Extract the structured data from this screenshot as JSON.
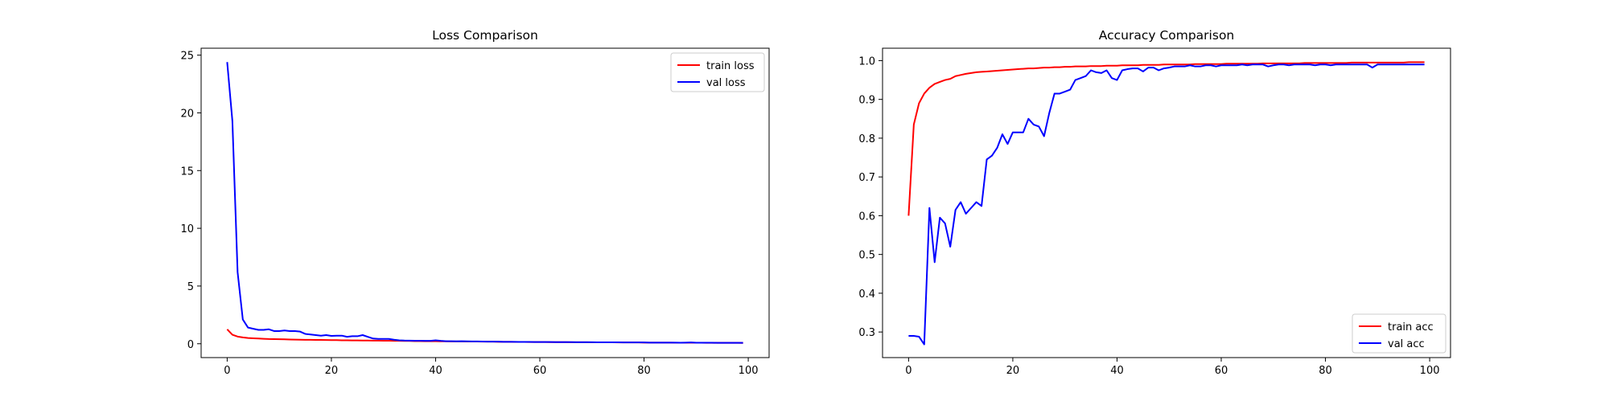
{
  "chart_data": [
    {
      "type": "line",
      "title": "Loss Comparison",
      "xlabel": "",
      "ylabel": "",
      "xlim": [
        -5,
        104
      ],
      "ylim": [
        -1.2,
        25.6
      ],
      "xticks": [
        0,
        20,
        40,
        60,
        80,
        100
      ],
      "yticks": [
        0,
        5,
        10,
        15,
        20,
        25
      ],
      "grid": false,
      "legend_position": "upper right",
      "series": [
        {
          "name": "train loss",
          "color": "#ff0000",
          "x": [
            0,
            1,
            2,
            3,
            4,
            5,
            6,
            7,
            8,
            9,
            10,
            11,
            12,
            13,
            14,
            15,
            16,
            17,
            18,
            19,
            20,
            21,
            22,
            23,
            24,
            25,
            26,
            27,
            28,
            29,
            30,
            31,
            32,
            33,
            34,
            35,
            36,
            37,
            38,
            39,
            40,
            41,
            42,
            43,
            44,
            45,
            46,
            47,
            48,
            49,
            50,
            51,
            52,
            53,
            54,
            55,
            56,
            57,
            58,
            59,
            60,
            61,
            62,
            63,
            64,
            65,
            66,
            67,
            68,
            69,
            70,
            71,
            72,
            73,
            74,
            75,
            76,
            77,
            78,
            79,
            80,
            81,
            82,
            83,
            84,
            85,
            86,
            87,
            88,
            89,
            90,
            91,
            92,
            93,
            94,
            95,
            96,
            97,
            98,
            99
          ],
          "values": [
            1.25,
            0.78,
            0.62,
            0.55,
            0.5,
            0.47,
            0.45,
            0.43,
            0.41,
            0.4,
            0.39,
            0.38,
            0.37,
            0.36,
            0.35,
            0.34,
            0.34,
            0.33,
            0.33,
            0.32,
            0.31,
            0.31,
            0.3,
            0.3,
            0.29,
            0.29,
            0.28,
            0.28,
            0.27,
            0.27,
            0.26,
            0.26,
            0.25,
            0.25,
            0.24,
            0.24,
            0.23,
            0.23,
            0.22,
            0.22,
            0.22,
            0.21,
            0.21,
            0.2,
            0.2,
            0.2,
            0.19,
            0.19,
            0.19,
            0.18,
            0.18,
            0.18,
            0.17,
            0.17,
            0.17,
            0.16,
            0.16,
            0.16,
            0.15,
            0.15,
            0.15,
            0.15,
            0.14,
            0.14,
            0.14,
            0.14,
            0.13,
            0.13,
            0.13,
            0.13,
            0.12,
            0.12,
            0.12,
            0.12,
            0.12,
            0.11,
            0.11,
            0.11,
            0.11,
            0.11,
            0.1,
            0.1,
            0.1,
            0.1,
            0.1,
            0.1,
            0.09,
            0.09,
            0.09,
            0.09,
            0.09,
            0.09,
            0.08,
            0.08,
            0.08,
            0.08,
            0.08,
            0.08,
            0.08,
            0.07
          ]
        },
        {
          "name": "val loss",
          "color": "#0000ff",
          "x": [
            0,
            1,
            2,
            3,
            4,
            5,
            6,
            7,
            8,
            9,
            10,
            11,
            12,
            13,
            14,
            15,
            16,
            17,
            18,
            19,
            20,
            21,
            22,
            23,
            24,
            25,
            26,
            27,
            28,
            29,
            30,
            31,
            32,
            33,
            34,
            35,
            36,
            37,
            38,
            39,
            40,
            41,
            42,
            43,
            44,
            45,
            46,
            47,
            48,
            49,
            50,
            51,
            52,
            53,
            54,
            55,
            56,
            57,
            58,
            59,
            60,
            61,
            62,
            63,
            64,
            65,
            66,
            67,
            68,
            69,
            70,
            71,
            72,
            73,
            74,
            75,
            76,
            77,
            78,
            79,
            80,
            81,
            82,
            83,
            84,
            85,
            86,
            87,
            88,
            89,
            90,
            91,
            92,
            93,
            94,
            95,
            96,
            97,
            98,
            99
          ],
          "values": [
            24.4,
            19.3,
            6.2,
            2.1,
            1.4,
            1.3,
            1.2,
            1.2,
            1.25,
            1.1,
            1.1,
            1.15,
            1.1,
            1.1,
            1.05,
            0.85,
            0.8,
            0.75,
            0.7,
            0.75,
            0.68,
            0.7,
            0.7,
            0.6,
            0.65,
            0.65,
            0.75,
            0.6,
            0.45,
            0.42,
            0.42,
            0.42,
            0.35,
            0.3,
            0.28,
            0.27,
            0.26,
            0.26,
            0.25,
            0.25,
            0.3,
            0.25,
            0.22,
            0.22,
            0.21,
            0.22,
            0.21,
            0.2,
            0.2,
            0.19,
            0.18,
            0.18,
            0.18,
            0.17,
            0.17,
            0.17,
            0.16,
            0.16,
            0.16,
            0.15,
            0.15,
            0.15,
            0.15,
            0.14,
            0.14,
            0.14,
            0.14,
            0.13,
            0.13,
            0.13,
            0.13,
            0.12,
            0.12,
            0.12,
            0.12,
            0.12,
            0.11,
            0.11,
            0.11,
            0.11,
            0.11,
            0.1,
            0.1,
            0.1,
            0.1,
            0.1,
            0.1,
            0.09,
            0.1,
            0.11,
            0.09,
            0.09,
            0.09,
            0.09,
            0.08,
            0.08,
            0.08,
            0.08,
            0.08,
            0.08
          ]
        }
      ]
    },
    {
      "type": "line",
      "title": "Accuracy Comparison",
      "xlabel": "",
      "ylabel": "",
      "xlim": [
        -5,
        104
      ],
      "ylim": [
        0.234,
        1.032
      ],
      "xticks": [
        0,
        20,
        40,
        60,
        80,
        100
      ],
      "yticks": [
        0.3,
        0.4,
        0.5,
        0.6,
        0.7,
        0.8,
        0.9,
        1.0
      ],
      "ytick_labels": [
        "0.3",
        "0.4",
        "0.5",
        "0.6",
        "0.7",
        "0.8",
        "0.9",
        "1.0"
      ],
      "grid": false,
      "legend_position": "lower right",
      "series": [
        {
          "name": "train acc",
          "color": "#ff0000",
          "x": [
            0,
            1,
            2,
            3,
            4,
            5,
            6,
            7,
            8,
            9,
            10,
            11,
            12,
            13,
            14,
            15,
            16,
            17,
            18,
            19,
            20,
            21,
            22,
            23,
            24,
            25,
            26,
            27,
            28,
            29,
            30,
            31,
            32,
            33,
            34,
            35,
            36,
            37,
            38,
            39,
            40,
            41,
            42,
            43,
            44,
            45,
            46,
            47,
            48,
            49,
            50,
            51,
            52,
            53,
            54,
            55,
            56,
            57,
            58,
            59,
            60,
            61,
            62,
            63,
            64,
            65,
            66,
            67,
            68,
            69,
            70,
            71,
            72,
            73,
            74,
            75,
            76,
            77,
            78,
            79,
            80,
            81,
            82,
            83,
            84,
            85,
            86,
            87,
            88,
            89,
            90,
            91,
            92,
            93,
            94,
            95,
            96,
            97,
            98,
            99
          ],
          "values": [
            0.6,
            0.835,
            0.89,
            0.915,
            0.93,
            0.94,
            0.945,
            0.95,
            0.953,
            0.96,
            0.963,
            0.966,
            0.968,
            0.97,
            0.971,
            0.972,
            0.973,
            0.974,
            0.975,
            0.976,
            0.977,
            0.978,
            0.979,
            0.98,
            0.98,
            0.981,
            0.982,
            0.982,
            0.983,
            0.983,
            0.984,
            0.984,
            0.985,
            0.985,
            0.985,
            0.986,
            0.986,
            0.986,
            0.987,
            0.987,
            0.987,
            0.988,
            0.988,
            0.988,
            0.988,
            0.989,
            0.989,
            0.989,
            0.989,
            0.99,
            0.99,
            0.99,
            0.99,
            0.99,
            0.99,
            0.991,
            0.991,
            0.991,
            0.991,
            0.991,
            0.991,
            0.992,
            0.992,
            0.992,
            0.992,
            0.992,
            0.992,
            0.992,
            0.993,
            0.993,
            0.993,
            0.993,
            0.993,
            0.993,
            0.993,
            0.993,
            0.994,
            0.994,
            0.994,
            0.994,
            0.994,
            0.994,
            0.994,
            0.994,
            0.994,
            0.995,
            0.995,
            0.995,
            0.995,
            0.995,
            0.995,
            0.995,
            0.995,
            0.995,
            0.995,
            0.995,
            0.996,
            0.996,
            0.996,
            0.996
          ]
        },
        {
          "name": "val acc",
          "color": "#0000ff",
          "x": [
            0,
            1,
            2,
            3,
            4,
            5,
            6,
            7,
            8,
            9,
            10,
            11,
            12,
            13,
            14,
            15,
            16,
            17,
            18,
            19,
            20,
            21,
            22,
            23,
            24,
            25,
            26,
            27,
            28,
            29,
            30,
            31,
            32,
            33,
            34,
            35,
            36,
            37,
            38,
            39,
            40,
            41,
            42,
            43,
            44,
            45,
            46,
            47,
            48,
            49,
            50,
            51,
            52,
            53,
            54,
            55,
            56,
            57,
            58,
            59,
            60,
            61,
            62,
            63,
            64,
            65,
            66,
            67,
            68,
            69,
            70,
            71,
            72,
            73,
            74,
            75,
            76,
            77,
            78,
            79,
            80,
            81,
            82,
            83,
            84,
            85,
            86,
            87,
            88,
            89,
            90,
            91,
            92,
            93,
            94,
            95,
            96,
            97,
            98,
            99
          ],
          "values": [
            0.29,
            0.29,
            0.288,
            0.268,
            0.62,
            0.48,
            0.595,
            0.58,
            0.52,
            0.615,
            0.635,
            0.605,
            0.62,
            0.635,
            0.625,
            0.745,
            0.755,
            0.775,
            0.81,
            0.785,
            0.815,
            0.815,
            0.815,
            0.85,
            0.835,
            0.83,
            0.805,
            0.865,
            0.915,
            0.915,
            0.92,
            0.925,
            0.95,
            0.955,
            0.96,
            0.975,
            0.97,
            0.968,
            0.975,
            0.955,
            0.95,
            0.975,
            0.978,
            0.98,
            0.98,
            0.972,
            0.982,
            0.982,
            0.975,
            0.98,
            0.982,
            0.985,
            0.985,
            0.985,
            0.988,
            0.985,
            0.985,
            0.988,
            0.988,
            0.985,
            0.988,
            0.988,
            0.988,
            0.988,
            0.99,
            0.988,
            0.99,
            0.99,
            0.99,
            0.985,
            0.988,
            0.99,
            0.99,
            0.988,
            0.99,
            0.99,
            0.99,
            0.99,
            0.988,
            0.99,
            0.99,
            0.988,
            0.99,
            0.99,
            0.99,
            0.99,
            0.99,
            0.99,
            0.99,
            0.982,
            0.99,
            0.99,
            0.99,
            0.99,
            0.99,
            0.99,
            0.99,
            0.99,
            0.99,
            0.99
          ]
        }
      ]
    }
  ]
}
